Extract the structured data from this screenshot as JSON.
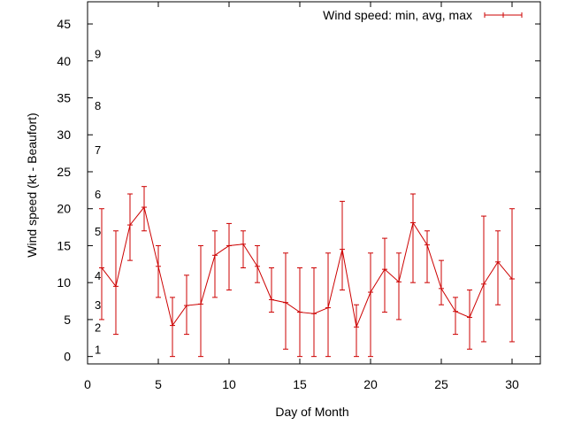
{
  "chart_data": {
    "type": "line",
    "title": "",
    "xlabel": "Day of Month",
    "ylabel": "Wind speed (kt - Beaufort)",
    "xlim": [
      0,
      32
    ],
    "ylim": [
      -1,
      48
    ],
    "x_ticks": [
      0,
      5,
      10,
      15,
      20,
      25,
      30
    ],
    "x_tick_labels": [
      "0",
      "5",
      "10",
      "15",
      "20",
      "25",
      "30"
    ],
    "y_ticks": [
      0,
      5,
      10,
      15,
      20,
      25,
      30,
      35,
      40,
      45
    ],
    "y_tick_labels": [
      "0",
      "5",
      "10",
      "15",
      "20",
      "25",
      "30",
      "35",
      "40",
      "45"
    ],
    "grid": false,
    "legend_position": "top-right",
    "beaufort_labels": [
      {
        "label": "1",
        "y": 1
      },
      {
        "label": "2",
        "y": 4
      },
      {
        "label": "3",
        "y": 7
      },
      {
        "label": "4",
        "y": 11
      },
      {
        "label": "5",
        "y": 17
      },
      {
        "label": "6",
        "y": 22
      },
      {
        "label": "7",
        "y": 28
      },
      {
        "label": "8",
        "y": 34
      },
      {
        "label": "9",
        "y": 41
      }
    ],
    "series": [
      {
        "name": "Wind speed: min, avg, max",
        "color": "#cc0000",
        "points": [
          {
            "x": 1,
            "avg": 12,
            "min": 5,
            "max": 20
          },
          {
            "x": 2,
            "avg": 9.5,
            "min": 3,
            "max": 17
          },
          {
            "x": 3,
            "avg": 17.8,
            "min": 13,
            "max": 22
          },
          {
            "x": 4,
            "avg": 20.2,
            "min": 17,
            "max": 23
          },
          {
            "x": 5,
            "avg": 12.2,
            "min": 8,
            "max": 15
          },
          {
            "x": 6,
            "avg": 4.2,
            "min": 0,
            "max": 8
          },
          {
            "x": 7,
            "avg": 6.9,
            "min": 3,
            "max": 11
          },
          {
            "x": 8,
            "avg": 7.1,
            "min": 0,
            "max": 15
          },
          {
            "x": 9,
            "avg": 13.7,
            "min": 8,
            "max": 17
          },
          {
            "x": 10,
            "avg": 15,
            "min": 9,
            "max": 18
          },
          {
            "x": 11,
            "avg": 15.2,
            "min": 12,
            "max": 17
          },
          {
            "x": 12,
            "avg": 12.2,
            "min": 10,
            "max": 15
          },
          {
            "x": 13,
            "avg": 7.7,
            "min": 6,
            "max": 12
          },
          {
            "x": 14,
            "avg": 7.3,
            "min": 1,
            "max": 14
          },
          {
            "x": 15,
            "avg": 6,
            "min": 0,
            "max": 12
          },
          {
            "x": 16,
            "avg": 5.8,
            "min": 0,
            "max": 12
          },
          {
            "x": 17,
            "avg": 6.6,
            "min": 0,
            "max": 14
          },
          {
            "x": 18,
            "avg": 14.5,
            "min": 9,
            "max": 21
          },
          {
            "x": 19,
            "avg": 4,
            "min": 0,
            "max": 7
          },
          {
            "x": 20,
            "avg": 8.7,
            "min": 0,
            "max": 14
          },
          {
            "x": 21,
            "avg": 11.8,
            "min": 6,
            "max": 16
          },
          {
            "x": 22,
            "avg": 10.1,
            "min": 5,
            "max": 14
          },
          {
            "x": 23,
            "avg": 18.1,
            "min": 10,
            "max": 22
          },
          {
            "x": 24,
            "avg": 15.1,
            "min": 10,
            "max": 17
          },
          {
            "x": 25,
            "avg": 9.2,
            "min": 7,
            "max": 13
          },
          {
            "x": 26,
            "avg": 6.1,
            "min": 3,
            "max": 8
          },
          {
            "x": 27,
            "avg": 5.3,
            "min": 1,
            "max": 9
          },
          {
            "x": 28,
            "avg": 9.8,
            "min": 2,
            "max": 19
          },
          {
            "x": 29,
            "avg": 12.8,
            "min": 7,
            "max": 17
          },
          {
            "x": 30,
            "avg": 10.5,
            "min": 2,
            "max": 20
          }
        ]
      }
    ]
  }
}
